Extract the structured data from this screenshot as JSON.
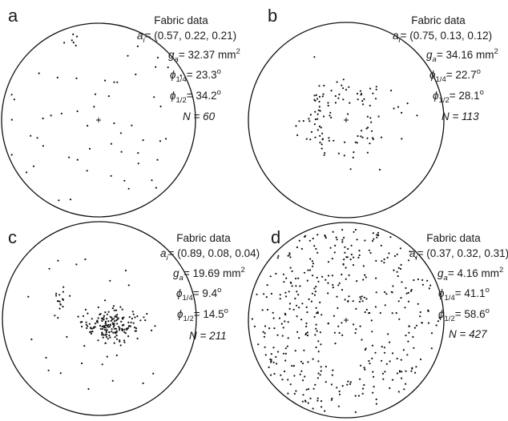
{
  "panels": [
    {
      "letter": "a",
      "title": "Fabric data",
      "ai_prefix": "a",
      "ai_sub": "i",
      "ai_value": "= (0.57, 0.22, 0.21)",
      "ga_prefix": "g",
      "ga_sub": "a",
      "ga_value": "= 32.37 mm",
      "ga_sup": "2",
      "phi14_prefix": "ϕ",
      "phi14_sub": "1/4",
      "phi14_value": "= 23.3",
      "phi14_sup": "o",
      "phi12_prefix": "ϕ",
      "phi12_sub": "1/2",
      "phi12_value": "= 34.2",
      "phi12_sup": "o",
      "n_text": "N = 60",
      "point_count": 60,
      "center_cross": true,
      "distribution": "scattered"
    },
    {
      "letter": "b",
      "title": "Fabric data",
      "ai_prefix": "a",
      "ai_sub": "i",
      "ai_value": "= (0.75, 0.13, 0.12)",
      "ga_prefix": "g",
      "ga_sub": "a",
      "ga_value": "= 34.16 mm",
      "ga_sup": "2",
      "phi14_prefix": "ϕ",
      "phi14_sub": "1/4",
      "phi14_value": "= 22.7",
      "phi14_sup": "o",
      "phi12_prefix": "ϕ",
      "phi12_sub": "1/2",
      "phi12_value": "= 28.1",
      "phi12_sup": "o",
      "n_text": "N = 113",
      "point_count": 113,
      "center_cross": true,
      "distribution": "girdle"
    },
    {
      "letter": "c",
      "title": "Fabric data",
      "ai_prefix": "a",
      "ai_sub": "i",
      "ai_value": "= (0.89, 0.08, 0.04)",
      "ga_prefix": "g",
      "ga_sub": "a",
      "ga_value": "= 19.69 mm",
      "ga_sup": "2",
      "phi14_prefix": "ϕ",
      "phi14_sub": "1/4",
      "phi14_value": "= 9.4",
      "phi14_sup": "o",
      "phi12_prefix": "ϕ",
      "phi12_sub": "1/2",
      "phi12_value": "= 14.5",
      "phi12_sup": "o",
      "n_text": "N = 211",
      "point_count": 211,
      "center_cross": false,
      "distribution": "cluster"
    },
    {
      "letter": "d",
      "title": "Fabric data",
      "ai_prefix": "a",
      "ai_sub": "i",
      "ai_value": "= (0.37, 0.32, 0.31)",
      "ga_prefix": "g",
      "ga_sub": "a",
      "ga_value": "= 4.16 mm",
      "ga_sup": "2",
      "phi14_prefix": "ϕ",
      "phi14_sub": "1/4",
      "phi14_value": "= 41.1",
      "phi14_sup": "o",
      "phi12_prefix": "ϕ",
      "phi12_sub": "1/2",
      "phi12_value": "= 58.6",
      "phi12_sup": "o",
      "n_text": "N = 427",
      "point_count": 427,
      "center_cross": true,
      "distribution": "uniform"
    }
  ]
}
